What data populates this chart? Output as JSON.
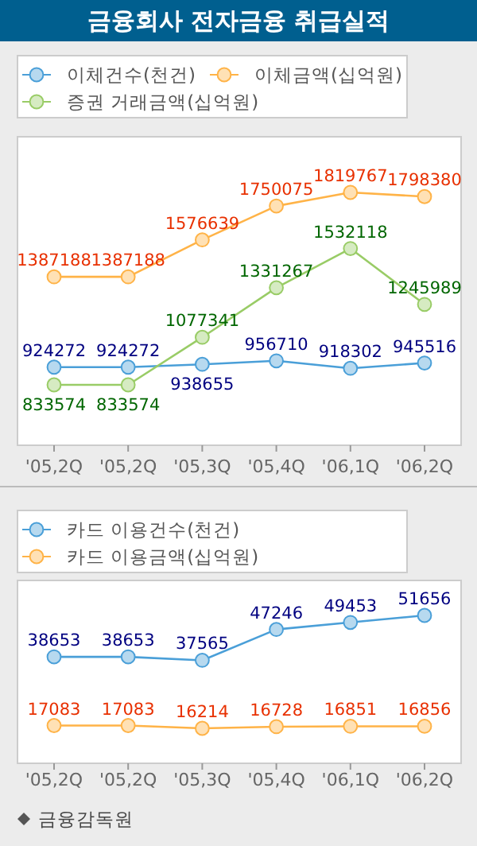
{
  "chart_data": [
    {
      "type": "line",
      "title": "금융회사 전자금융 취급실적",
      "categories": [
        "'05,2Q",
        "'05,2Q",
        "'05,3Q",
        "'05,4Q",
        "'06,1Q",
        "'06,2Q"
      ],
      "data_labels": true,
      "legend": "top left",
      "marker": "circle",
      "line_style": "solid",
      "series": [
        {
          "name": "이체건수(천건)",
          "color": "#4a9fd8",
          "values": [
            924272,
            924272,
            938655,
            956710,
            918302,
            945516
          ]
        },
        {
          "name": "이체금액(십억원)",
          "color": "#ffb347",
          "values": [
            1387188,
            1387188,
            1576639,
            1750075,
            1819767,
            1798380
          ]
        },
        {
          "name": "증권 거래금액(십억원)",
          "color": "#99cc66",
          "values": [
            833574,
            833574,
            1077341,
            1331267,
            1532118,
            1245989
          ]
        }
      ]
    },
    {
      "type": "line",
      "categories": [
        "'05,2Q",
        "'05,2Q",
        "'05,3Q",
        "'05,4Q",
        "'06,1Q",
        "'06,2Q"
      ],
      "data_labels": true,
      "legend": "top left",
      "marker": "circle",
      "line_style": "solid",
      "annotations": [
        "금융감독원"
      ],
      "series": [
        {
          "name": "카드 이용건수(천건)",
          "color": "#4a9fd8",
          "values": [
            38653,
            38653,
            37565,
            47246,
            49453,
            51656
          ]
        },
        {
          "name": "카드 이용금액(십억원)",
          "color": "#ffb347",
          "values": [
            17083,
            17083,
            16214,
            16728,
            16851,
            16856
          ]
        }
      ]
    }
  ]
}
